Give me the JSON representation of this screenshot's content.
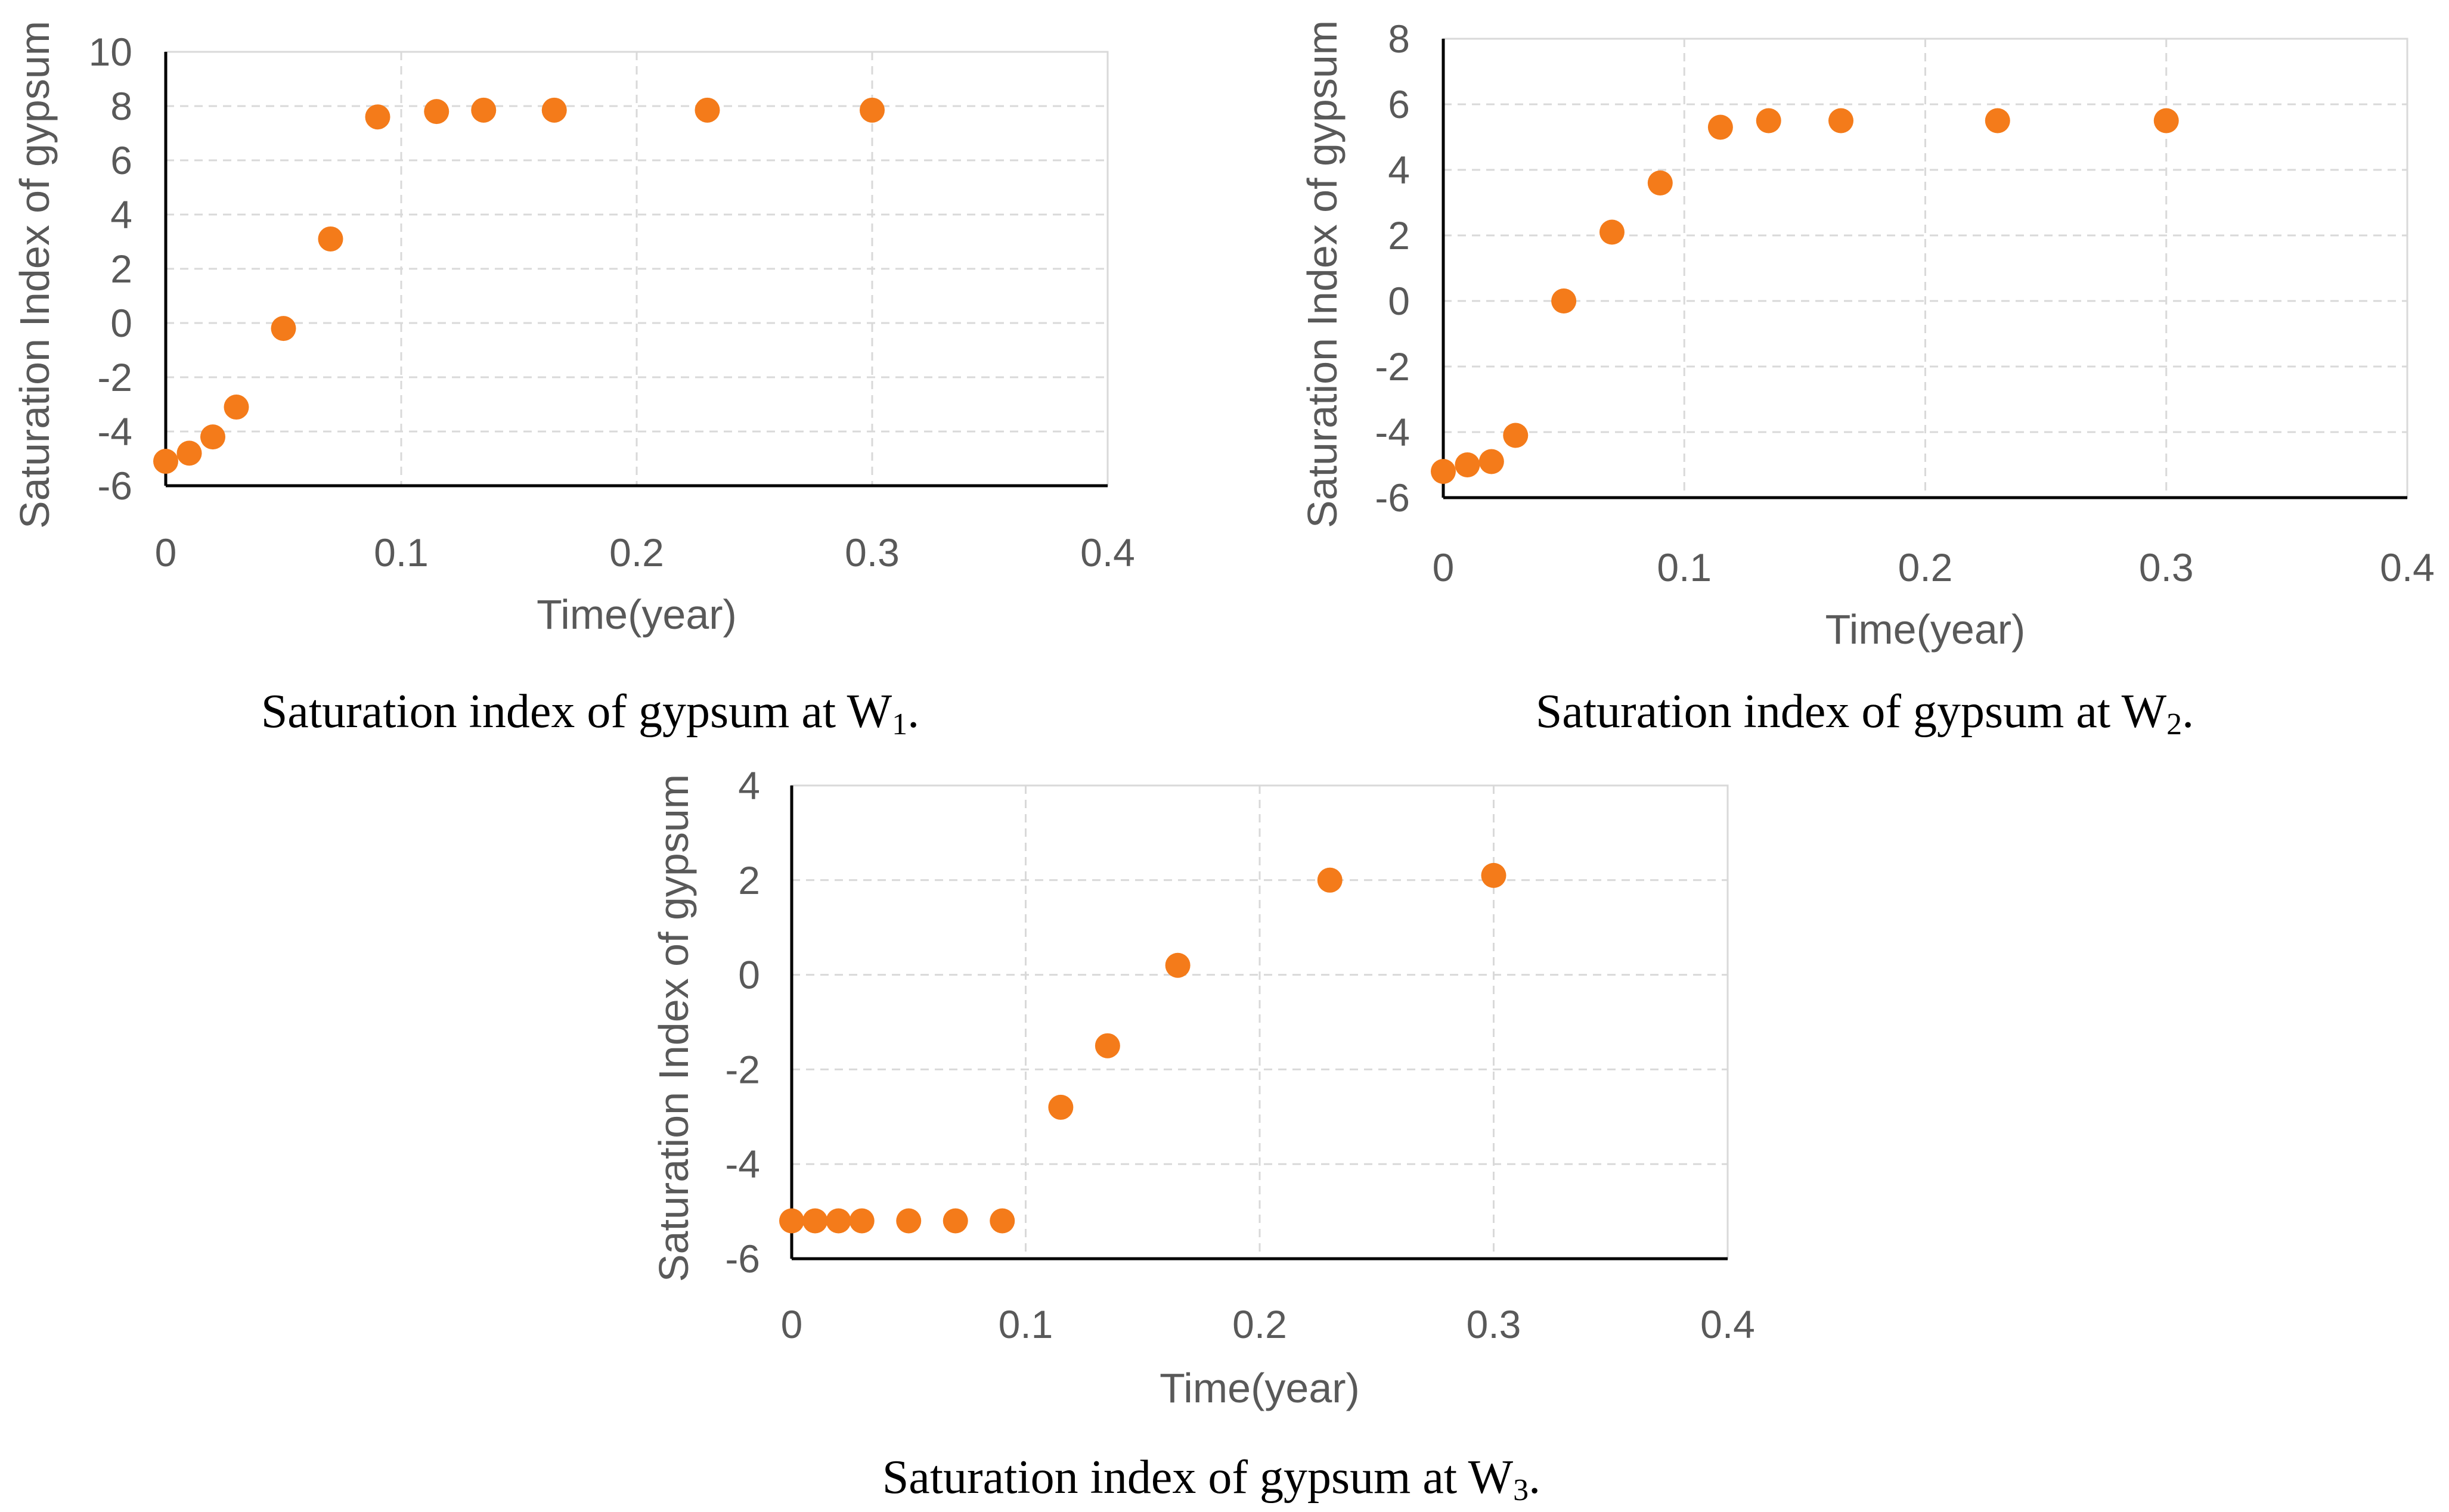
{
  "colors": {
    "marker": "#F47B1A",
    "grid": "#d9d9d9",
    "axis": "#000000",
    "text": "#595959"
  },
  "chart_data": [
    {
      "type": "scatter",
      "xlabel": "Time(year)",
      "ylabel": "Saturation Index of gypsum",
      "xlim": [
        0,
        0.4
      ],
      "ylim": [
        -6,
        10
      ],
      "x_ticks": [
        "0",
        "0.1",
        "0.2",
        "0.3",
        "0.4"
      ],
      "y_ticks": [
        "-6",
        "-4",
        "-2",
        "0",
        "2",
        "4",
        "6",
        "8",
        "10"
      ],
      "caption": "Saturation index of gypsum at W",
      "caption_sub": "1",
      "caption_end": ".",
      "series": [
        {
          "name": "W1",
          "x": [
            0,
            0.01,
            0.02,
            0.03,
            0.05,
            0.07,
            0.09,
            0.115,
            0.135,
            0.165,
            0.23,
            0.3
          ],
          "y": [
            -5.1,
            -4.8,
            -4.2,
            -3.1,
            -0.2,
            3.1,
            7.6,
            7.8,
            7.85,
            7.85,
            7.85,
            7.85
          ]
        }
      ]
    },
    {
      "type": "scatter",
      "xlabel": "Time(year)",
      "ylabel": "Saturation Index of gypsum",
      "xlim": [
        0,
        0.4
      ],
      "ylim": [
        -6,
        8
      ],
      "x_ticks": [
        "0",
        "0.1",
        "0.2",
        "0.3",
        "0.4"
      ],
      "y_ticks": [
        "-6",
        "-4",
        "-2",
        "0",
        "2",
        "4",
        "6",
        "8"
      ],
      "caption": "Saturation index of gypsum at W",
      "caption_sub": "2",
      "caption_end": ".",
      "series": [
        {
          "name": "W2",
          "x": [
            0,
            0.01,
            0.02,
            0.03,
            0.05,
            0.07,
            0.09,
            0.115,
            0.135,
            0.165,
            0.23,
            0.3
          ],
          "y": [
            -5.2,
            -5.0,
            -4.9,
            -4.1,
            0.0,
            2.1,
            3.6,
            5.3,
            5.5,
            5.5,
            5.5,
            5.5
          ]
        }
      ]
    },
    {
      "type": "scatter",
      "xlabel": "Time(year)",
      "ylabel": "Saturation Index of gypsum",
      "xlim": [
        0,
        0.4
      ],
      "ylim": [
        -6,
        4
      ],
      "x_ticks": [
        "0",
        "0.1",
        "0.2",
        "0.3",
        "0.4"
      ],
      "y_ticks": [
        "-6",
        "-4",
        "-2",
        "0",
        "2",
        "4"
      ],
      "caption": "Saturation index of gypsum at W",
      "caption_sub": "3",
      "caption_end": ".",
      "series": [
        {
          "name": "W3",
          "x": [
            0,
            0.01,
            0.02,
            0.03,
            0.05,
            0.07,
            0.09,
            0.115,
            0.135,
            0.165,
            0.23,
            0.3
          ],
          "y": [
            -5.2,
            -5.2,
            -5.2,
            -5.2,
            -5.2,
            -5.2,
            -5.2,
            -2.8,
            -1.5,
            0.2,
            2.0,
            2.1
          ]
        }
      ]
    }
  ]
}
